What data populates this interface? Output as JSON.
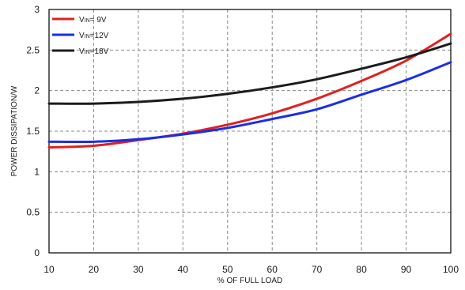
{
  "chart_data": {
    "type": "line",
    "title": "",
    "xlabel": "% OF FULL LOAD",
    "ylabel": "POWER DISSIPATION/W",
    "xlim": [
      10,
      100
    ],
    "ylim": [
      0,
      3
    ],
    "xticks": [
      "10",
      "20",
      "30",
      "40",
      "50",
      "60",
      "70",
      "80",
      "90",
      "100"
    ],
    "yticks": [
      "0",
      "0.5",
      "1",
      "1.5",
      "2",
      "2.5",
      "3"
    ],
    "grid": true,
    "legend_position": "top-left",
    "x": [
      10,
      20,
      30,
      40,
      50,
      60,
      70,
      80,
      90,
      100
    ],
    "series": [
      {
        "name": "9V",
        "legend_prefix": "V",
        "legend_sub": "IN",
        "legend_eq": "= ",
        "color": "#e02020",
        "values": [
          1.3,
          1.32,
          1.39,
          1.47,
          1.58,
          1.72,
          1.9,
          2.12,
          2.37,
          2.7
        ]
      },
      {
        "name": "12V",
        "legend_prefix": "V",
        "legend_sub": "IN",
        "legend_eq": "=",
        "color": "#1a2ee6",
        "values": [
          1.37,
          1.37,
          1.4,
          1.46,
          1.54,
          1.65,
          1.77,
          1.95,
          2.13,
          2.35
        ]
      },
      {
        "name": "18V",
        "legend_prefix": "V",
        "legend_sub": "IN",
        "legend_eq": "=",
        "color": "#1c1c1c",
        "values": [
          1.84,
          1.84,
          1.86,
          1.9,
          1.96,
          2.04,
          2.14,
          2.27,
          2.41,
          2.58
        ]
      }
    ]
  }
}
